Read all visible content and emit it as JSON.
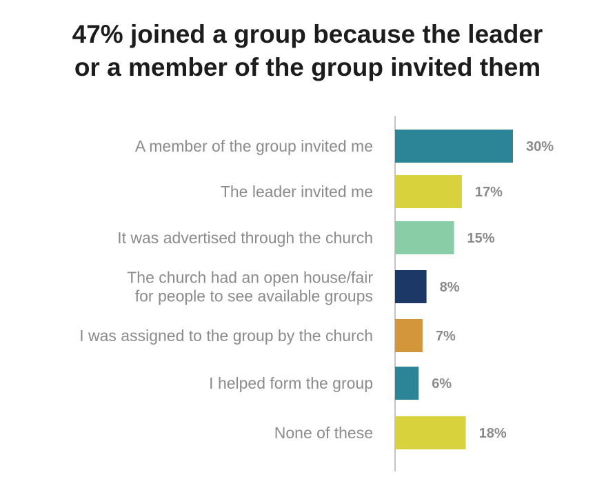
{
  "chart_data": {
    "type": "bar",
    "orientation": "horizontal",
    "title": "47% joined a group because the leader\nor a member of the group invited them",
    "categories": [
      "A member of the group invited me",
      "The leader invited me",
      "It was advertised through the church",
      "The church had an open house/fair\nfor people to see available groups",
      "I was assigned to the group by the church",
      "I helped form the group",
      "None of these"
    ],
    "values": [
      30,
      17,
      15,
      8,
      7,
      6,
      18
    ],
    "value_labels": [
      "30%",
      "17%",
      "15%",
      "8%",
      "7%",
      "6%",
      "18%"
    ],
    "colors": [
      "#2b8596",
      "#d8d23d",
      "#88cda6",
      "#1b3866",
      "#d4963b",
      "#2b8596",
      "#d8d23d"
    ],
    "axis_color": "#b0b0b0",
    "xlim": [
      0,
      30
    ],
    "grid": false,
    "legend": "none"
  }
}
